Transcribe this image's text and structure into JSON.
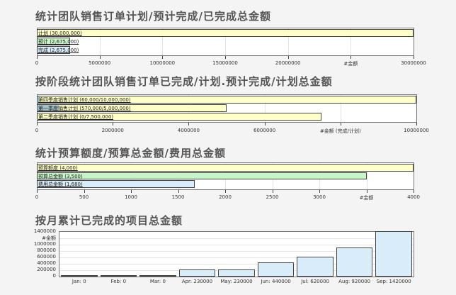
{
  "chart_data": [
    {
      "type": "bar",
      "orientation": "horizontal",
      "title": "统计团队销售订单计划/预计完成/已完成总金额",
      "xlabel": "#金额",
      "xlim": [
        0,
        30000000
      ],
      "ticks": [
        "0",
        "5000000",
        "10000000",
        "15000000",
        "20000000",
        "#金额",
        "30000000"
      ],
      "tick_values": [
        0,
        5000000,
        10000000,
        15000000,
        20000000,
        25000000,
        30000000
      ],
      "bars": [
        {
          "label": "计划 (30,000,000)",
          "value": 30000000,
          "color": "#ffffc8"
        },
        {
          "label": "预计 (2,675,000)",
          "value": 2675000,
          "color": "#c8f5c8"
        },
        {
          "label": "完成 (2,675,000)",
          "value": 2675000,
          "color": "#d8ecfa"
        }
      ]
    },
    {
      "type": "bar",
      "orientation": "horizontal",
      "title": "按阶段统计团队销售订单已完成/计划.预计完成/计划总金额",
      "xlabel": "#金额 (完成/计划)",
      "xlim": [
        0,
        10000000
      ],
      "ticks": [
        "0",
        "2000000",
        "4000000",
        "6000000",
        "#金额 (完成/计划)",
        "10000000"
      ],
      "tick_values": [
        0,
        2000000,
        4000000,
        6000000,
        8000000,
        10000000
      ],
      "bars": [
        {
          "label": "第四季度销售计划 (60,000/10,000,000)",
          "value": 10000000,
          "completed": 60000,
          "color": "#ffffc8"
        },
        {
          "label": "第一季度销售计划 (570,000/5,000,000)",
          "value": 5000000,
          "completed": 570000,
          "color": "#ffffc8"
        },
        {
          "label": "第二季度销售计划 (0/7,500,000)",
          "value": 7500000,
          "completed": 0,
          "color": "#ffffc8"
        }
      ]
    },
    {
      "type": "bar",
      "orientation": "horizontal",
      "title": "统计预算额度/预算总金额/费用总金额",
      "xlabel": "#金额",
      "xlim": [
        0,
        4000
      ],
      "ticks": [
        "0",
        "500",
        "1000",
        "1500",
        "2000",
        "2500",
        "3000",
        "#金额",
        "4000"
      ],
      "tick_values": [
        0,
        500,
        1000,
        1500,
        2000,
        2500,
        3000,
        3500,
        4000
      ],
      "bars": [
        {
          "label": "预算额度 (4,000)",
          "value": 4000,
          "color": "#ffffc8"
        },
        {
          "label": "预算总金额 (3,500)",
          "value": 3500,
          "color": "#c8f5c8"
        },
        {
          "label": "费用总金额 (1,680)",
          "value": 1680,
          "color": "#d8ecfa"
        }
      ]
    },
    {
      "type": "bar",
      "orientation": "vertical",
      "title": "按月累计已完成的项目总金额",
      "ylabel": "#金额",
      "ylim": [
        0,
        1400000
      ],
      "yticks": [
        "0",
        "200000",
        "400000",
        "600000",
        "800000",
        "1000000",
        "#金额",
        "1400000"
      ],
      "ytick_values": [
        0,
        200000,
        400000,
        600000,
        800000,
        1000000,
        1200000,
        1400000
      ],
      "categories": [
        "Jan: 0",
        "Feb: 0",
        "Mar: 0",
        "Apr: 230000",
        "May: 230000",
        "Jun: 440000",
        "Jul: 620000",
        "Aug: 920000",
        "Sep: 1420000"
      ],
      "values": [
        0,
        0,
        0,
        230000,
        230000,
        440000,
        620000,
        920000,
        1420000
      ],
      "color": "#d8ecfa"
    }
  ],
  "colors": {
    "completed_overlay": "#5b8fc9"
  }
}
